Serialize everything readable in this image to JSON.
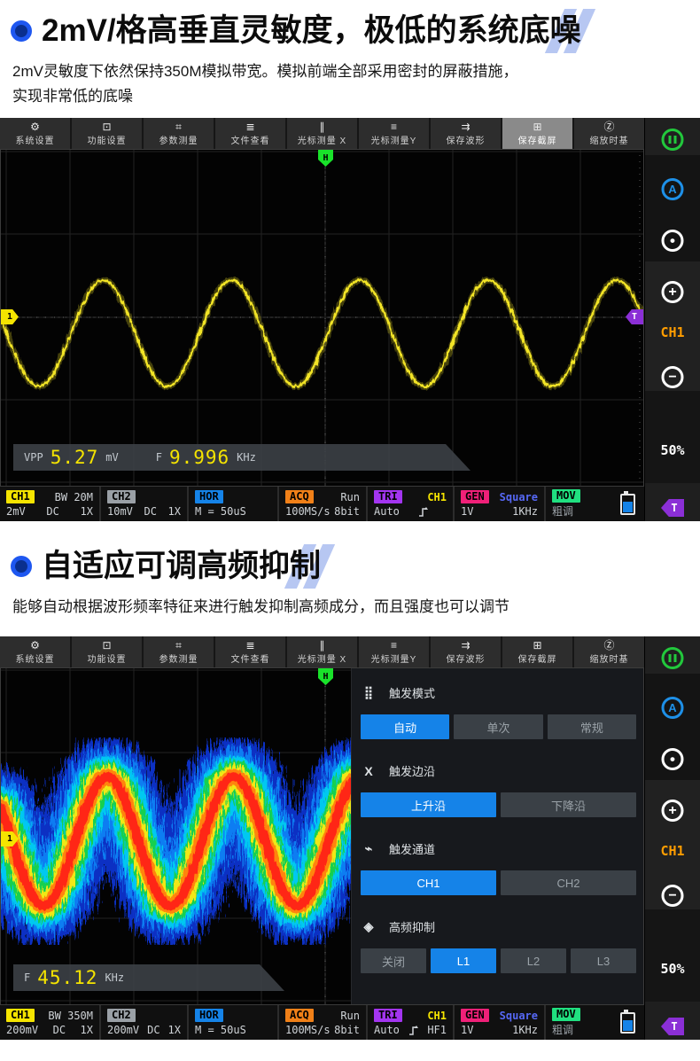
{
  "hero1": {
    "title": "2mV/格高垂直灵敏度，极低的系统底噪",
    "line1": "2mV灵敏度下依然保持350M模拟带宽。模拟前端全部采用密封的屏蔽措施，",
    "line2": "实现非常低的底噪"
  },
  "hero2": {
    "title": "自适应可调高频抑制",
    "line1": "能够自动根据波形频率特征来进行触发抑制高频成分，而且强度也可以调节"
  },
  "toolbar": {
    "items": [
      {
        "icon": "gear-icon",
        "glyph": "⚙",
        "label": "系统设置"
      },
      {
        "icon": "display-icon",
        "glyph": "⊡",
        "label": "功能设置"
      },
      {
        "icon": "ruler-icon",
        "glyph": "⌗",
        "label": "参数测量"
      },
      {
        "icon": "files-icon",
        "glyph": "≣",
        "label": "文件查看"
      },
      {
        "icon": "cursor-x-icon",
        "glyph": "∥",
        "label": "光标测量 X"
      },
      {
        "icon": "cursor-y-icon",
        "glyph": "≡",
        "label": "光标测量Y"
      },
      {
        "icon": "save-wave-icon",
        "glyph": "⇉",
        "label": "保存波形"
      },
      {
        "icon": "screenshot-icon",
        "glyph": "⊞",
        "label": "保存截屏"
      },
      {
        "icon": "zoom-icon",
        "glyph": "Ⓩ",
        "label": "缩放时基"
      }
    ]
  },
  "sidebar": {
    "pause_icon": "pause",
    "pause_color": "#22c83c",
    "auto_glyph": "A",
    "auto_color": "#1e90e8",
    "center_glyph": "•",
    "plus_glyph": "+",
    "channel_label": "CH1",
    "channel_color": "#ff9d00",
    "minus_glyph": "−",
    "percent_label": "50%",
    "trigger_label": "T",
    "trigger_color": "#8b2fd6"
  },
  "scope1": {
    "h_marker": "H",
    "ch_marker": "1",
    "t_marker": "T",
    "trace_color": "#f2e428",
    "meas": {
      "vpp_label": "VPP",
      "vpp_value": "5.27",
      "vpp_unit": "mV",
      "f_label": "F",
      "f_value": "9.996",
      "f_unit": "KHz"
    },
    "status": {
      "ch1": {
        "badge": "CH1",
        "bw": "BW 20M",
        "volt": "2mV",
        "coupling": "DC",
        "probe": "1X"
      },
      "ch2": {
        "badge": "CH2",
        "volt": "10mV",
        "coupling": "DC",
        "probe": "1X"
      },
      "hor": {
        "badge": "HOR",
        "timebase": "M = 50uS"
      },
      "acq": {
        "badge": "ACQ",
        "run": "Run",
        "rate": "100MS/s",
        "bits": "8bit"
      },
      "tri": {
        "badge": "TRI",
        "source": "CH1",
        "mode": "Auto",
        "edge_icon": "rising-edge",
        "hf": ""
      },
      "gen": {
        "badge": "GEN",
        "wave": "Square",
        "volt": "1V",
        "freq": "1KHz"
      },
      "mov": {
        "badge": "MOV",
        "value": "粗调"
      },
      "battery_level": "58%"
    }
  },
  "scope2": {
    "h_marker": "H",
    "ch_marker": "1",
    "heat_colors": [
      "#0a34d8",
      "#0f7df2",
      "#00c8f0",
      "#18d050",
      "#f0e818",
      "#ff8410",
      "#ff2812"
    ],
    "meas": {
      "f_label": "F",
      "f_value": "45.12",
      "f_unit": "KHz"
    },
    "status": {
      "ch1": {
        "badge": "CH1",
        "bw": "BW 350M",
        "volt": "200mV",
        "coupling": "DC",
        "probe": "1X"
      },
      "ch2": {
        "badge": "CH2",
        "volt": "200mV",
        "coupling": "DC",
        "probe": "1X"
      },
      "hor": {
        "badge": "HOR",
        "timebase": "M = 50uS"
      },
      "acq": {
        "badge": "ACQ",
        "run": "Run",
        "rate": "100MS/s",
        "bits": "8bit"
      },
      "tri": {
        "badge": "TRI",
        "source": "CH1",
        "mode": "Auto",
        "edge_icon": "rising-edge",
        "hf": "HF1"
      },
      "gen": {
        "badge": "GEN",
        "wave": "Square",
        "volt": "1V",
        "freq": "1KHz"
      },
      "mov": {
        "badge": "MOV",
        "value": "粗调"
      },
      "battery_level": "58%"
    },
    "panel": {
      "sections": [
        {
          "icon": "grid-icon",
          "glyph": "⣿",
          "label": "触发模式",
          "active": 0,
          "buttons": [
            "自动",
            "单次",
            "常规"
          ]
        },
        {
          "icon": "edges-icon",
          "glyph": "X",
          "label": "触发边沿",
          "active": 0,
          "buttons": [
            "上升沿",
            "下降沿"
          ]
        },
        {
          "icon": "probe-icon",
          "glyph": "⌁",
          "label": "触发通道",
          "active": 0,
          "buttons": [
            "CH1",
            "CH2"
          ]
        },
        {
          "icon": "filter-icon",
          "glyph": "◈",
          "label": "高频抑制",
          "active": 1,
          "buttons": [
            "关闭",
            "L1",
            "L2",
            "L3"
          ]
        }
      ]
    }
  },
  "colors": {
    "accent_blue": "#1583e8",
    "ch1_yellow": "#f5e400",
    "ch2_grey": "#9aa0a6",
    "hor_blue": "#1583e8",
    "acq_orange": "#f08018",
    "tri_purple": "#a335f0",
    "gen_pink": "#f02078",
    "mov_green": "#20e080",
    "heading_bullet": "#1e57f0",
    "deco_blue": "#b7c7f2",
    "panel_active": "#1583e8"
  }
}
